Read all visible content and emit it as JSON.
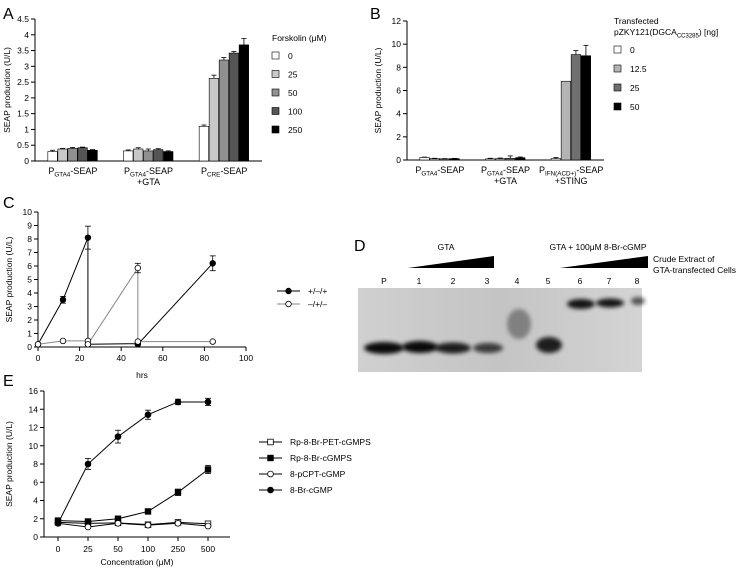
{
  "panels": {
    "A": {
      "letter": "A"
    },
    "B": {
      "letter": "B"
    },
    "C": {
      "letter": "C"
    },
    "D": {
      "letter": "D"
    },
    "E": {
      "letter": "E"
    }
  },
  "gel": {
    "gta_label": "GTA",
    "gta_cgmp_label": "GTA + 100μM 8-Br-cGMP",
    "side_label_1": "Crude Extract of",
    "side_label_2": "GTA-transfected Cells",
    "lanes": [
      "P",
      "1",
      "2",
      "3",
      "4",
      "5",
      "6",
      "7",
      "8"
    ]
  },
  "chart_data": [
    {
      "panel": "A",
      "type": "bar",
      "ylabel": "SEAP production (U/L)",
      "ylim": [
        0,
        4.5
      ],
      "yticks": [
        "0",
        "0.5",
        "1",
        "1.5",
        "2",
        "2.5",
        "3",
        "3.5",
        "4",
        "4.5"
      ],
      "categories": [
        {
          "main": "P",
          "sub": "GTA4",
          "tail": "-SEAP",
          "line2": ""
        },
        {
          "main": "P",
          "sub": "GTA4",
          "tail": "-SEAP",
          "line2": "+GTA"
        },
        {
          "main": "P",
          "sub": "CRE",
          "tail": "-SEAP",
          "line2": ""
        }
      ],
      "legend_title": "Forskolin (μM)",
      "legend_title_lines": [],
      "series": [
        {
          "name": "0",
          "color": "#ffffff",
          "values": [
            0.3,
            0.32,
            1.1
          ],
          "errors": [
            0.04,
            0.03,
            0.04
          ]
        },
        {
          "name": "25",
          "color": "#c8c8c8",
          "values": [
            0.38,
            0.38,
            2.62
          ],
          "errors": [
            0.02,
            0.04,
            0.1
          ]
        },
        {
          "name": "50",
          "color": "#909090",
          "values": [
            0.4,
            0.32,
            3.2
          ],
          "errors": [
            0.03,
            0.06,
            0.08
          ]
        },
        {
          "name": "100",
          "color": "#555555",
          "values": [
            0.42,
            0.36,
            3.42
          ],
          "errors": [
            0.02,
            0.03,
            0.05
          ]
        },
        {
          "name": "250",
          "color": "#000000",
          "values": [
            0.34,
            0.3,
            3.68
          ],
          "errors": [
            0.02,
            0.02,
            0.2
          ]
        }
      ]
    },
    {
      "panel": "B",
      "type": "bar",
      "ylabel": "SEAP production (U/L)",
      "ylim": [
        0,
        12
      ],
      "yticks": [
        "0",
        "2",
        "4",
        "6",
        "8",
        "10",
        "12"
      ],
      "categories": [
        {
          "main": "P",
          "sub": "GTA4",
          "tail": "-SEAP",
          "line2": "",
          "line3": ""
        },
        {
          "main": "P",
          "sub": "GTA4",
          "tail": "-SEAP",
          "line2": "+GTA",
          "line3": ""
        },
        {
          "main": "P",
          "sub": "IFN(ACD+)",
          "tail": "-SEAP",
          "line2": "+STING",
          "line3": ""
        }
      ],
      "legend_title": "",
      "legend_title_lines": [
        "Transfected",
        "pZKY121(DGCA",
        "CC3285",
        ") [ng]"
      ],
      "series": [
        {
          "name": "0",
          "color": "#ffffff",
          "values": [
            0.22,
            0.1,
            0.12
          ],
          "errors": [
            0.03,
            0.05,
            0.1
          ]
        },
        {
          "name": "12.5",
          "color": "#b4b4b4",
          "values": [
            0.12,
            0.12,
            6.8
          ],
          "errors": [
            0.03,
            0.05,
            0.0
          ]
        },
        {
          "name": "25",
          "color": "#707070",
          "values": [
            0.1,
            0.15,
            9.1
          ],
          "errors": [
            0.02,
            0.2,
            0.35
          ]
        },
        {
          "name": "50",
          "color": "#000000",
          "values": [
            0.12,
            0.2,
            9.0
          ],
          "errors": [
            0.02,
            0.06,
            0.9
          ]
        }
      ]
    },
    {
      "panel": "C",
      "type": "line",
      "xlabel": "hrs",
      "ylabel": "SEAP production (U/L)",
      "xlim": [
        0,
        100
      ],
      "ylim": [
        0,
        10
      ],
      "xticks": [
        "0",
        "20",
        "40",
        "60",
        "80",
        "100"
      ],
      "yticks": [
        "0",
        "1",
        "2",
        "3",
        "4",
        "5",
        "6",
        "7",
        "8",
        "9",
        "10"
      ],
      "series": [
        {
          "name": "+/–/+",
          "marker": "filled",
          "x": [
            0,
            12,
            24,
            24,
            48,
            48,
            84
          ],
          "y": [
            0.2,
            3.5,
            8.1,
            0.2,
            0.25,
            0.2,
            6.2
          ],
          "errors": [
            0,
            0.25,
            0.85,
            0,
            0,
            0,
            0.55
          ]
        },
        {
          "name": "–/+/–",
          "marker": "open",
          "x": [
            0,
            12,
            24,
            24,
            48,
            48,
            84
          ],
          "y": [
            0.2,
            0.45,
            0.45,
            0.2,
            5.85,
            0.4,
            0.4
          ],
          "errors": [
            0,
            0,
            0,
            0,
            0.35,
            0,
            0
          ]
        }
      ]
    },
    {
      "panel": "E",
      "type": "line",
      "xlabel": "Concentration (μM)",
      "ylabel": "SEAP production (U/L)",
      "ylim": [
        0,
        16
      ],
      "categories": [
        "0",
        "25",
        "50",
        "100",
        "250",
        "500"
      ],
      "yticks": [
        "0",
        "2",
        "4",
        "6",
        "8",
        "10",
        "12",
        "14",
        "16"
      ],
      "series": [
        {
          "name": "Rp-8-Br-PET-cGMPS",
          "marker": "open-square",
          "values": [
            1.6,
            1.5,
            1.55,
            1.35,
            1.6,
            1.45
          ],
          "errors": [
            0.1,
            0.1,
            0.1,
            0.1,
            0.1,
            0.1
          ]
        },
        {
          "name": "Rp-8-Br-cGMPS",
          "marker": "filled-square",
          "values": [
            1.8,
            1.7,
            2.0,
            2.8,
            4.9,
            7.4
          ],
          "errors": [
            0.15,
            0.15,
            0.2,
            0.25,
            0.35,
            0.45
          ]
        },
        {
          "name": "8-pCPT-cGMP",
          "marker": "open",
          "values": [
            1.5,
            1.1,
            1.5,
            1.3,
            1.5,
            1.2
          ],
          "errors": [
            0.1,
            0.1,
            0.1,
            0.1,
            0.1,
            0.1
          ]
        },
        {
          "name": "8-Br-cGMP",
          "marker": "filled",
          "values": [
            1.5,
            8.0,
            11.0,
            13.4,
            14.8,
            14.8
          ],
          "errors": [
            0.2,
            0.6,
            0.7,
            0.5,
            0.3,
            0.4
          ]
        }
      ]
    }
  ]
}
